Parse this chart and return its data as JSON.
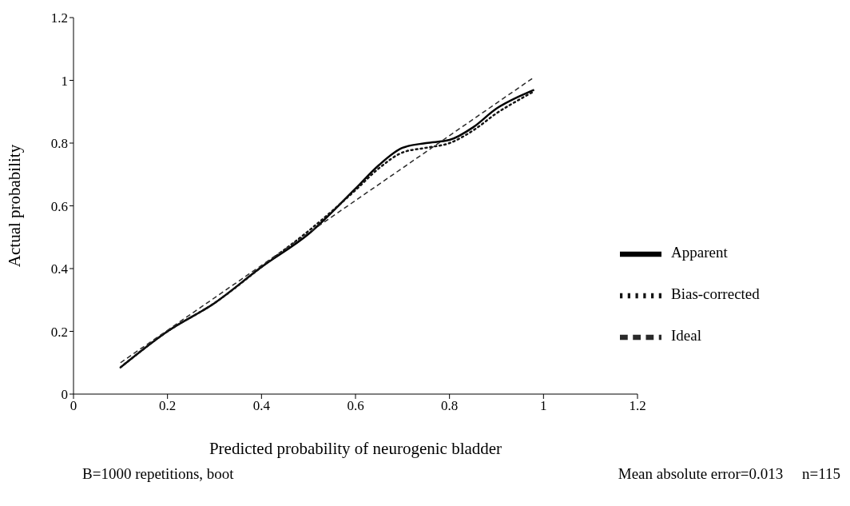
{
  "chart_data": {
    "type": "line",
    "xlabel": "Predicted probability of neurogenic bladder",
    "ylabel": "Actual probability",
    "xlim": [
      0,
      1.2
    ],
    "ylim": [
      0,
      1.2
    ],
    "xticks": [
      0,
      0.2,
      0.4,
      0.6,
      0.8,
      1,
      1.2
    ],
    "yticks": [
      0,
      0.2,
      0.4,
      0.6,
      0.8,
      1,
      1.2
    ],
    "grid": false,
    "legend": "bottom right",
    "marker": "none",
    "series": [
      {
        "name": "Apparent",
        "color": "#000000",
        "line_style": "solid",
        "x": [
          0.1,
          0.2,
          0.3,
          0.4,
          0.5,
          0.6,
          0.65,
          0.7,
          0.75,
          0.8,
          0.85,
          0.9,
          0.95,
          0.98
        ],
        "values": [
          0.085,
          0.2,
          0.29,
          0.405,
          0.51,
          0.655,
          0.73,
          0.785,
          0.8,
          0.81,
          0.85,
          0.91,
          0.95,
          0.97
        ]
      },
      {
        "name": "Bias-corrected",
        "color": "#141414",
        "line_style": "dotted",
        "x": [
          0.1,
          0.2,
          0.3,
          0.4,
          0.5,
          0.6,
          0.65,
          0.7,
          0.75,
          0.8,
          0.85,
          0.9,
          0.95,
          0.98
        ],
        "values": [
          0.085,
          0.2,
          0.29,
          0.405,
          0.52,
          0.65,
          0.72,
          0.77,
          0.785,
          0.8,
          0.84,
          0.895,
          0.94,
          0.965
        ]
      },
      {
        "name": "Ideal",
        "color": "#2a2a2a",
        "line_style": "dashed",
        "x": [
          0.1,
          0.98
        ],
        "values": [
          0.1,
          1.01
        ]
      }
    ],
    "annotations": [
      "B=1000 repetitions, boot",
      "Mean absolute error=0.013     n=115"
    ]
  }
}
